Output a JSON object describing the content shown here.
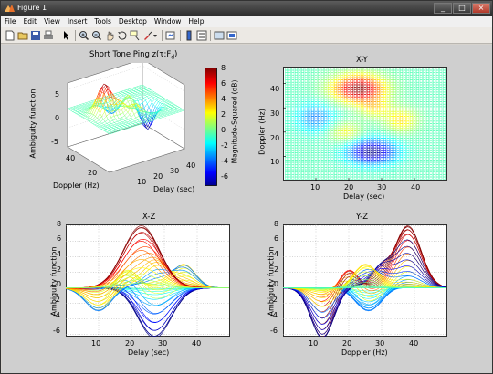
{
  "window": {
    "title": "Figure 1",
    "buttons": [
      "_",
      "□",
      "×"
    ]
  },
  "menu": [
    "File",
    "Edit",
    "View",
    "Insert",
    "Tools",
    "Desktop",
    "Window",
    "Help"
  ],
  "toolbar_icons": [
    "new-figure-icon",
    "open-icon",
    "save-icon",
    "print-icon",
    "arrow-icon",
    "zoom-in-icon",
    "zoom-out-icon",
    "pan-icon",
    "rotate-icon",
    "data-cursor-icon",
    "brush-icon",
    "link-icon",
    "colorbar-icon",
    "legend-icon",
    "hide-plot-tools-icon",
    "show-plot-tools-icon"
  ],
  "colors": {
    "title_bg": "#3a3a3a",
    "figure_bg": "#cfcfcf",
    "axes_bg": "#ffffff"
  },
  "plots": {
    "surface3d": {
      "title": "Short Tone Ping z(τ;F",
      "title_sub": "d",
      "title_end": ")",
      "zlabel": "Ambiguity function",
      "ylabel": "Doppler (Hz)",
      "xlabel": "Delay (sec)",
      "zticks": [
        "5",
        "0",
        "-5"
      ],
      "yticks": [
        "40",
        "20"
      ],
      "xticks": [
        "10",
        "20",
        "30",
        "40"
      ]
    },
    "colorbar": {
      "label": "Magnitude-Squared (dB)",
      "ticks": [
        "8",
        "6",
        "4",
        "2",
        "0",
        "-2",
        "-4",
        "-6"
      ]
    },
    "xy": {
      "title": "X-Y",
      "xlabel": "Delay (sec)",
      "ylabel": "Doppler (Hz)",
      "xticks": [
        "10",
        "20",
        "30",
        "40"
      ],
      "yticks": [
        "40",
        "30",
        "20",
        "10"
      ]
    },
    "xz": {
      "title": "X-Z",
      "xlabel": "Delay (sec)",
      "ylabel": "Ambiguity function",
      "xticks": [
        "10",
        "20",
        "30",
        "40"
      ],
      "yticks": [
        "8",
        "6",
        "4",
        "2",
        "0",
        "-2",
        "-4",
        "-6"
      ]
    },
    "yz": {
      "title": "Y-Z",
      "xlabel": "Doppler (Hz)",
      "ylabel": "Ambiguity function",
      "xticks": [
        "10",
        "20",
        "30",
        "40"
      ],
      "yticks": [
        "8",
        "6",
        "4",
        "2",
        "0",
        "-2",
        "-4",
        "-6"
      ]
    }
  }
}
